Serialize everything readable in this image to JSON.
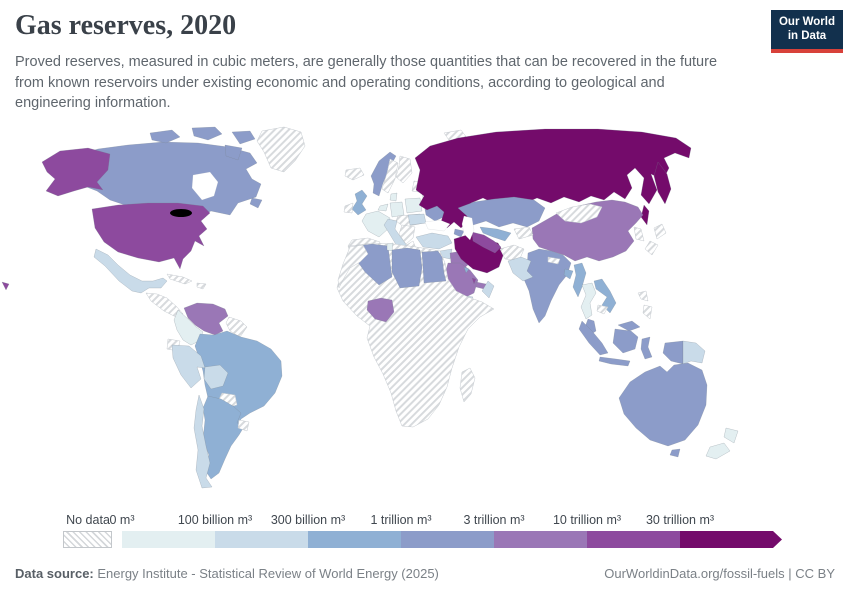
{
  "header": {
    "title": "Gas reserves, 2020",
    "subtitle": "Proved reserves, measured in cubic meters, are generally those quantities that can be recovered in the future from known reservoirs under existing economic and operating conditions, according to geological and engineering information."
  },
  "logo": {
    "line1": "Our World",
    "line2": "in Data",
    "bg_color": "#12304d",
    "accent_color": "#d8413a"
  },
  "legend": {
    "no_data_label": "No data",
    "tick_labels": [
      "0 m³",
      "100 billion m³",
      "300 billion m³",
      "1 trillion m³",
      "3 trillion m³",
      "10 trillion m³",
      "30 trillion m³"
    ],
    "bucket_colors": [
      "#e3eff1",
      "#c9dbe9",
      "#8fb0d4",
      "#8c9cc9",
      "#9a77b6",
      "#8d4a9e",
      "#740b6b"
    ]
  },
  "footer": {
    "source_label": "Data source:",
    "source_text": " Energy Institute - Statistical Review of World Energy (2025)",
    "link_text": "OurWorldinData.org/fossil-fuels",
    "license_text": " | CC BY"
  },
  "chart_data": {
    "type": "choropleth",
    "title": "Gas reserves, 2020",
    "unit": "m³",
    "bins": [
      {
        "label": "0 m³ – 100 billion m³",
        "color": "#e3eff1"
      },
      {
        "label": "100 billion m³ – 300 billion m³",
        "color": "#c9dbe9"
      },
      {
        "label": "300 billion m³ – 1 trillion m³",
        "color": "#8fb0d4"
      },
      {
        "label": "1 trillion m³ – 3 trillion m³",
        "color": "#8c9cc9"
      },
      {
        "label": "3 trillion m³ – 10 trillion m³",
        "color": "#9a77b6"
      },
      {
        "label": "10 trillion m³ – 30 trillion m³",
        "color": "#8d4a9e"
      },
      {
        "label": "30 trillion m³ and more",
        "color": "#740b6b"
      }
    ],
    "countries": {
      "russia": 6,
      "russia-kamchatka": 6,
      "russia-sakhalin": 6,
      "iran": 6,
      "usa": 5,
      "alaska": 5,
      "hawaii": 5,
      "turkmenistan": 5,
      "qatar": 5,
      "china": 4,
      "saudi-arabia": 4,
      "venezuela": 4,
      "nigeria": 4,
      "iraq": 4,
      "uae": 4,
      "canada": 3,
      "canada-island-1": 3,
      "canada-island-2": 3,
      "canada-island-3": 3,
      "baffin": 3,
      "newfoundland": 3,
      "australia": 3,
      "tasmania": 3,
      "norway": 3,
      "ukraine": 3,
      "kazakhstan": 3,
      "algeria": 3,
      "libya": 3,
      "egypt": 3,
      "india": 3,
      "azerbaijan": 3,
      "malaysia-peninsula": 3,
      "malaysia-borneo": 3,
      "sumatra": 3,
      "java": 3,
      "kalimantan": 3,
      "sulawesi": 3,
      "west-papua": 3,
      "brazil": 2,
      "argentina": 2,
      "uk": 2,
      "vietnam": 2,
      "myanmar": 2,
      "uzbekistan": 2,
      "bangladesh": 2,
      "kuwait": 2,
      "mexico": 1,
      "peru": 1,
      "bolivia": 1,
      "chile": 1,
      "italy": 1,
      "sicily": 1,
      "romania": 1,
      "turkey": 1,
      "syria": 1,
      "pakistan": 1,
      "oman": 1,
      "yemen": 1,
      "papua-new-guinea": 1,
      "colombia": 0,
      "france": 0,
      "germany": 0,
      "poland": 0,
      "benelux": 0,
      "denmark": 0,
      "thailand": 0,
      "tunisia": 0,
      "nz-north": 0,
      "nz-south": 0,
      "greenland": "no_data",
      "iceland": "no_data",
      "svalbard": "no_data",
      "sweden": "no_data",
      "finland": "no_data",
      "ireland": "no_data",
      "iberia": "no_data",
      "belarus": "no_data",
      "baltics": "no_data",
      "central-europe": "no_data",
      "balkans": "no_data",
      "greece": "no_data",
      "morocco": "no_data",
      "africa": "no_data",
      "madagascar": "no_data",
      "levant": "no_data",
      "afghanistan": "no_data",
      "kyrgyzstan": "no_data",
      "nepal": "no_data",
      "mongolia": "no_data",
      "korea": "no_data",
      "japan-north": "no_data",
      "japan-south": "no_data",
      "philippines-1": "no_data",
      "philippines-2": "no_data",
      "cambodia": "no_data",
      "central-america": "no_data",
      "cuba": "no_data",
      "hispaniola": "no_data",
      "guyanas": "no_data",
      "ecuador": "no_data",
      "paraguay": "no_data",
      "uruguay": "no_data"
    },
    "no_data": {
      "label": "No data",
      "pattern": "diagonal-hatch"
    },
    "legend_position": "bottom"
  }
}
